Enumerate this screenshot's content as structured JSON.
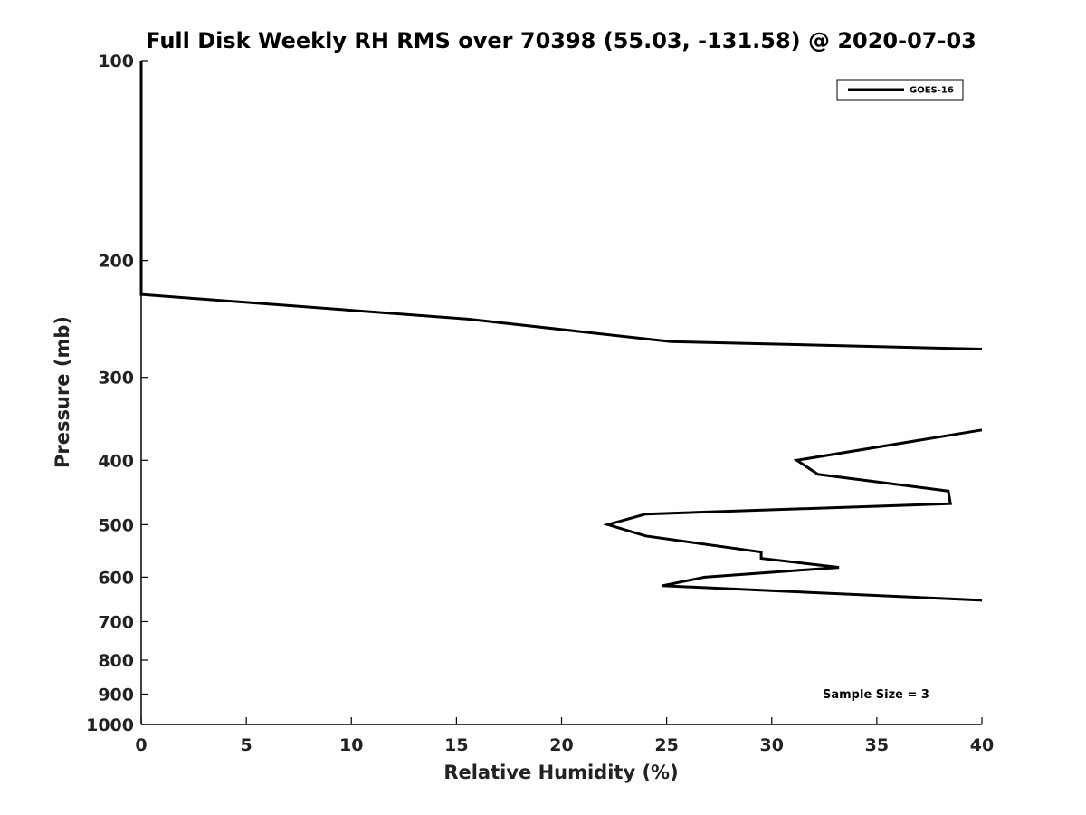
{
  "chart_data": {
    "type": "line",
    "title": "Full Disk Weekly RH RMS over 70398 (55.03, -131.58) @ 2020-07-03",
    "xlabel": "Relative Humidity (%)",
    "ylabel": "Pressure (mb)",
    "xlim": [
      0,
      40
    ],
    "ylim": [
      1000,
      100
    ],
    "yscale": "log",
    "grid": false,
    "legend_position": "top-right",
    "annotation": "Sample Size = 3",
    "x_ticks": [
      0,
      5,
      10,
      15,
      20,
      25,
      30,
      35,
      40
    ],
    "x_tick_labels": [
      "0",
      "5",
      "10",
      "15",
      "20",
      "25",
      "30",
      "35",
      "40"
    ],
    "y_ticks": [
      100,
      200,
      300,
      400,
      500,
      600,
      700,
      800,
      900,
      1000
    ],
    "y_tick_labels": [
      "100",
      "200",
      "300",
      "400",
      "500",
      "600",
      "700",
      "800",
      "900",
      "1000"
    ],
    "series": [
      {
        "name": "GOES-16",
        "color": "#000000",
        "segments": [
          {
            "rh": [
              0,
              0,
              0,
              0,
              15.5,
              25.2,
              40
            ],
            "pressure": [
              100,
              150,
              200,
              225,
              245,
              265,
              272
            ]
          },
          {
            "rh": [
              40,
              31.2,
              32.2,
              38.4,
              38.5,
              24,
              22.2,
              24,
              29.5,
              29.5,
              33.2,
              26.8,
              24.8,
              40
            ],
            "pressure": [
              360,
              400,
              420,
              445,
              465,
              482,
              500,
              520,
              550,
              562,
              580,
              600,
              618,
              650
            ]
          }
        ]
      }
    ]
  }
}
